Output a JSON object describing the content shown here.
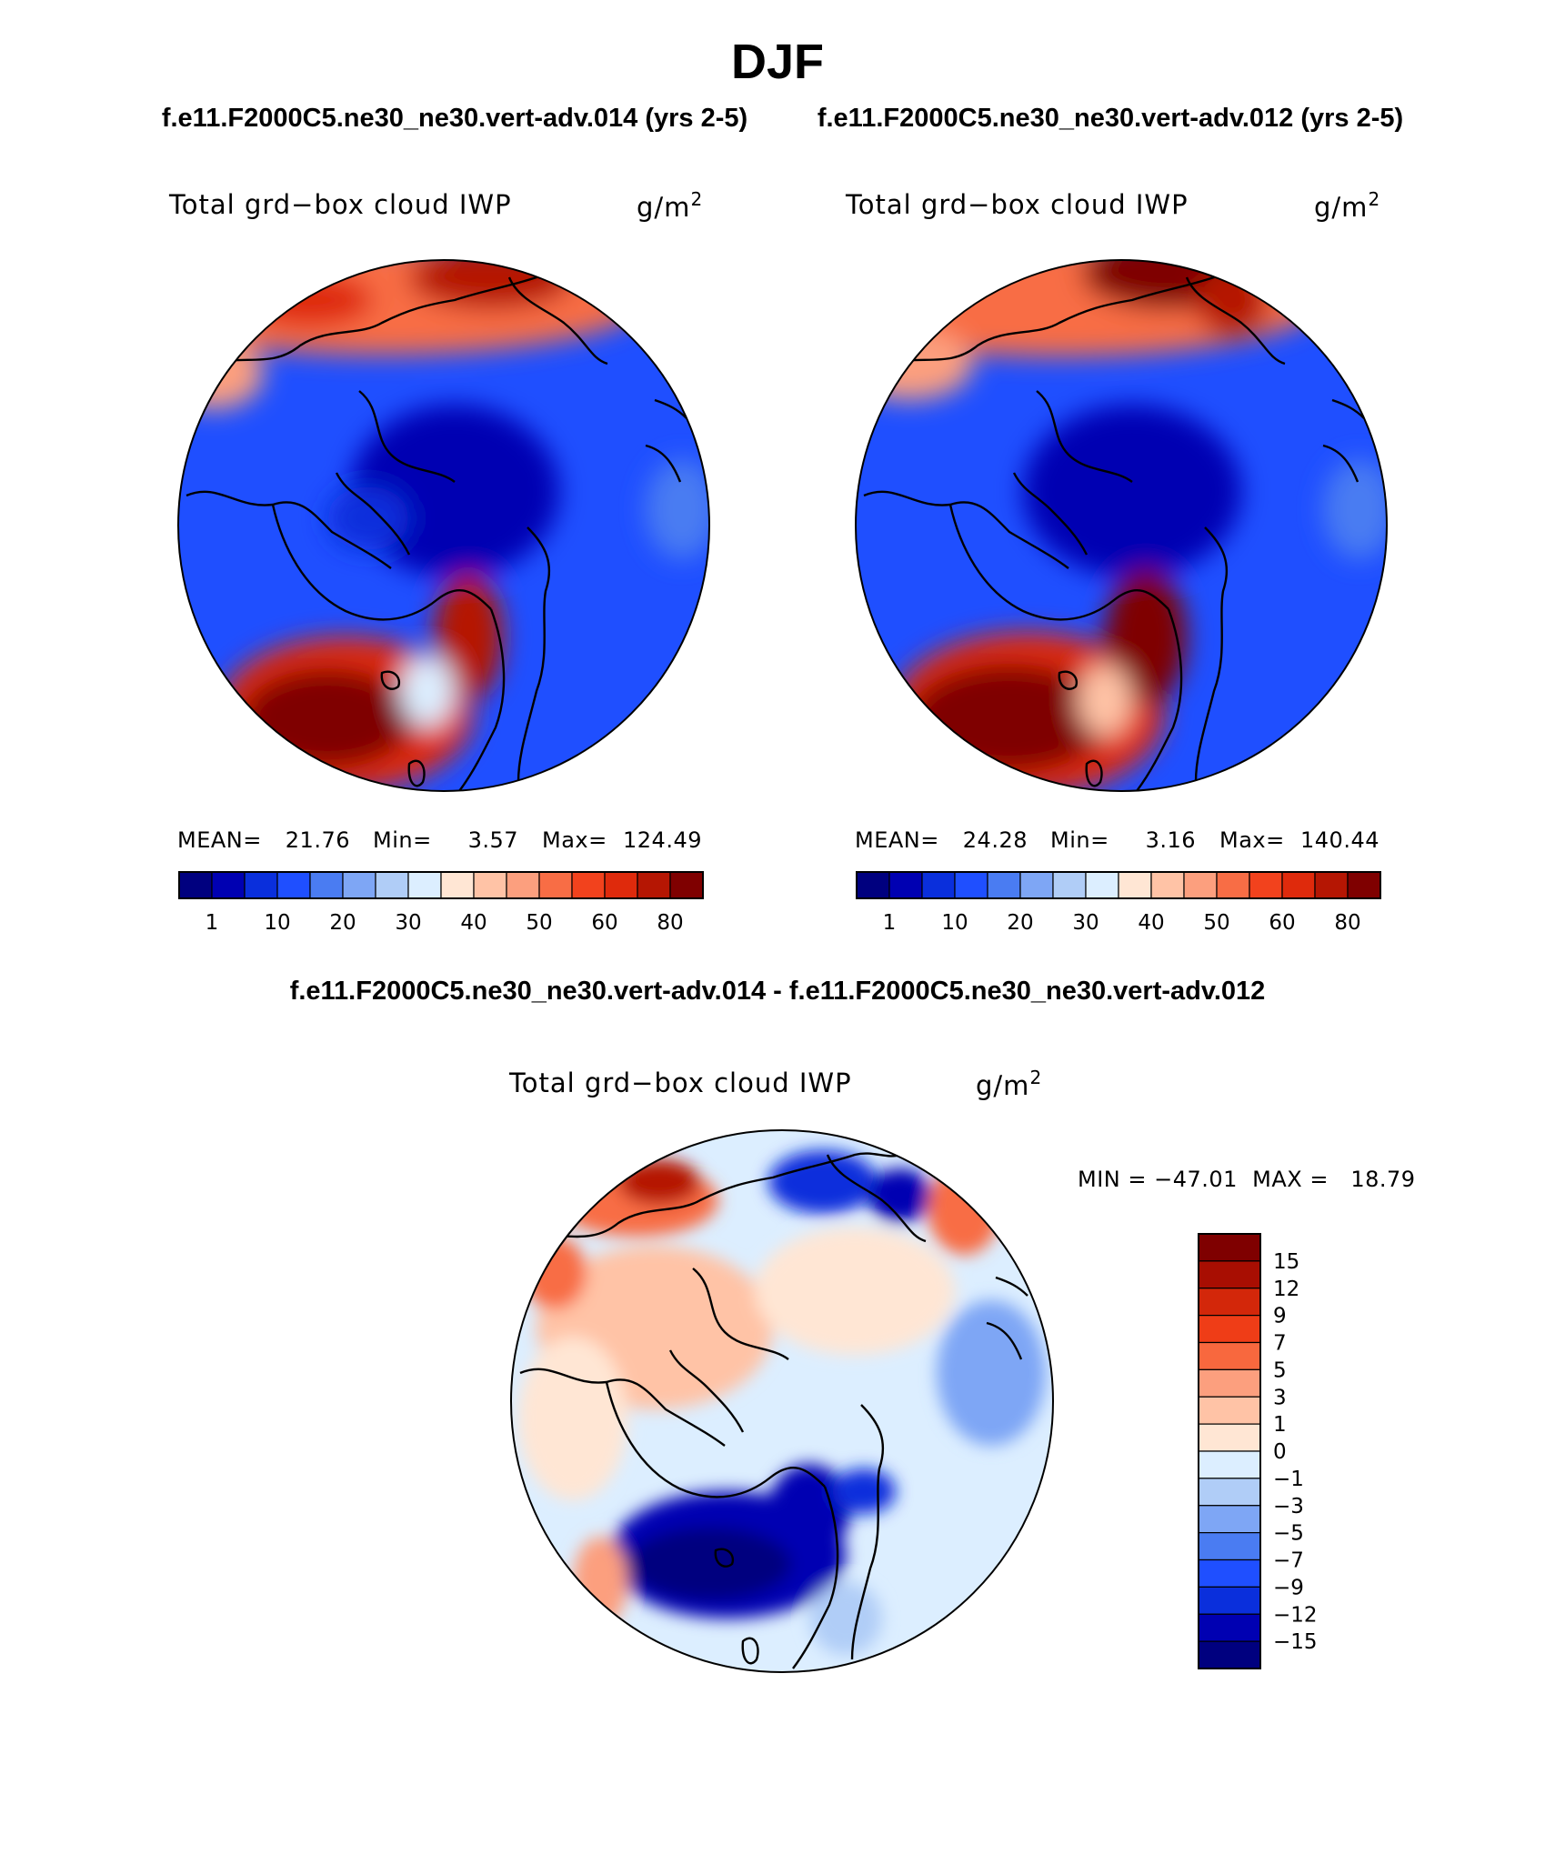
{
  "figure": {
    "title": "DJF",
    "top_left_case": "f.e11.F2000C5.ne30_ne30.vert-adv.014 (yrs 2-5)",
    "top_right_case": "f.e11.F2000C5.ne30_ne30.vert-adv.012 (yrs 2-5)",
    "diff_title": "f.e11.F2000C5.ne30_ne30.vert-adv.014 - f.e11.F2000C5.ne30_ne30.vert-adv.012"
  },
  "panels": {
    "left": {
      "variable": "Total grd−box cloud IWP",
      "units": "g/m",
      "units_exp": "2",
      "stats": {
        "mean_label": "MEAN=",
        "mean": "21.76",
        "min_label": "Min=",
        "min": "3.57",
        "max_label": "Max=",
        "max": "124.49"
      }
    },
    "right": {
      "variable": "Total grd−box cloud IWP",
      "units": "g/m",
      "units_exp": "2",
      "stats": {
        "mean_label": "MEAN=",
        "mean": "24.28",
        "min_label": "Min=",
        "min": "3.16",
        "max_label": "Max=",
        "max": "140.44"
      }
    },
    "diff": {
      "variable": "Total grd−box cloud IWP",
      "units": "g/m",
      "units_exp": "2",
      "minmax": "MIN = −47.01  MAX =   18.79"
    }
  },
  "colorbars": {
    "abs_ticks": [
      "1",
      "10",
      "20",
      "30",
      "40",
      "50",
      "60",
      "80"
    ],
    "abs_colors": [
      "#00007f",
      "#0000b2",
      "#0a2fdc",
      "#1f4fff",
      "#4a7cf2",
      "#7ea6f5",
      "#b0cdf7",
      "#dceeff",
      "#ffe6d4",
      "#ffc3a6",
      "#fc9f7e",
      "#f86d45",
      "#f2421d",
      "#df2a0c",
      "#b51603",
      "#7f0000"
    ],
    "diff_ticks": [
      "15",
      "12",
      "9",
      "7",
      "5",
      "3",
      "1",
      "0",
      "−1",
      "−3",
      "−5",
      "−7",
      "−9",
      "−12",
      "−15"
    ],
    "diff_colors": [
      "#7f0000",
      "#a80e02",
      "#d3270a",
      "#ef3d17",
      "#f8683e",
      "#fc9f7e",
      "#ffc3a6",
      "#ffe6d4",
      "#dceeff",
      "#b0cdf7",
      "#7ea6f5",
      "#4a7cf2",
      "#1f4fff",
      "#0a2fdc",
      "#0000b2",
      "#00007f"
    ]
  },
  "colors": {
    "background_field": "#1f4fff",
    "coast": "#000000"
  }
}
